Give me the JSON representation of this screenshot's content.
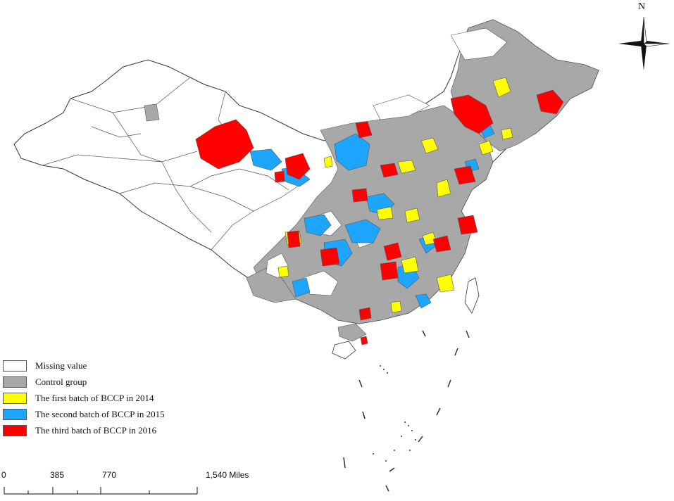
{
  "compass": {
    "north_label": "N",
    "icon": "north-arrow-compass-icon"
  },
  "legend": {
    "items": [
      {
        "label": "Missing value",
        "color": "#ffffff"
      },
      {
        "label": "Control group",
        "color": "#a8a8a8"
      },
      {
        "label": "The first batch of BCCP in 2014",
        "color": "#ffff00"
      },
      {
        "label": "The second batch of BCCP in 2015",
        "color": "#1ea5ff"
      },
      {
        "label": "The third batch of BCCP in 2016",
        "color": "#ff0000"
      }
    ]
  },
  "scale_bar": {
    "ticks": [
      "0",
      "385",
      "770",
      "1,540 Miles"
    ]
  },
  "colors": {
    "missing": "#ffffff",
    "control": "#a8a8a8",
    "batch2014": "#ffff00",
    "batch2015": "#1ea5ff",
    "batch2016": "#ff0000",
    "outline": "#333333"
  }
}
